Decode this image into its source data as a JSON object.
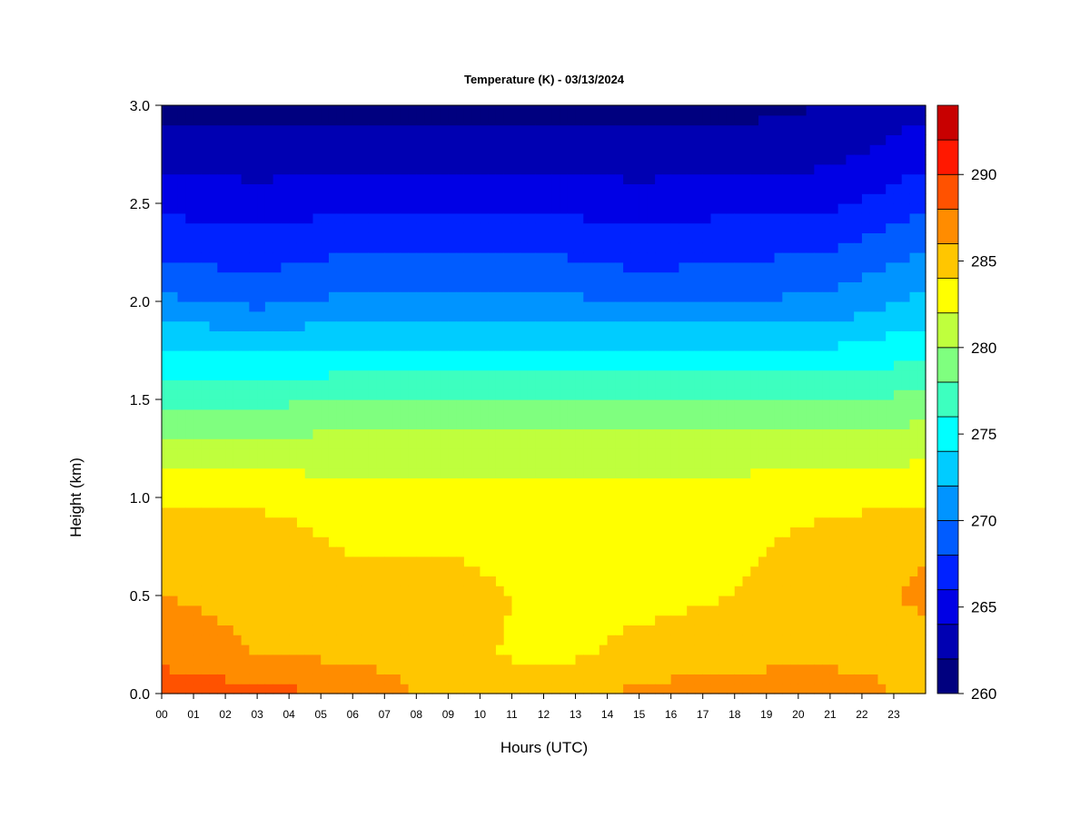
{
  "chart_data": {
    "type": "heatmap",
    "title": "Temperature (K) - 03/13/2024",
    "xlabel": "Hours (UTC)",
    "ylabel": "Height (km)",
    "x_ticks": [
      "00",
      "01",
      "02",
      "03",
      "04",
      "05",
      "06",
      "07",
      "08",
      "09",
      "10",
      "11",
      "12",
      "13",
      "14",
      "15",
      "16",
      "17",
      "18",
      "19",
      "20",
      "21",
      "22",
      "23"
    ],
    "xlim": [
      0,
      24
    ],
    "y_ticks": [
      "0.0",
      "0.5",
      "1.0",
      "1.5",
      "2.0",
      "2.5",
      "3.0"
    ],
    "ylim": [
      0,
      3.0
    ],
    "colorbar": {
      "ticks": [
        "260",
        "265",
        "270",
        "275",
        "280",
        "285",
        "290"
      ],
      "range": [
        260,
        294
      ],
      "levels": [
        260,
        262,
        264,
        266,
        268,
        270,
        272,
        274,
        276,
        278,
        280,
        282,
        284,
        286,
        288,
        290,
        292,
        294
      ],
      "colors": [
        "#00007f",
        "#0000b2",
        "#0000e5",
        "#0022ff",
        "#005cff",
        "#0094ff",
        "#00ccff",
        "#00ffff",
        "#3dffbf",
        "#7fff7f",
        "#bfff3d",
        "#ffff00",
        "#ffc600",
        "#ff8c00",
        "#ff5200",
        "#ff1800",
        "#c80000",
        "#7f0000"
      ]
    },
    "profile_heights_km": [
      0.0,
      0.2,
      0.5,
      0.8,
      1.0,
      1.3,
      1.5,
      1.7,
      2.0,
      2.2,
      2.5,
      2.8,
      3.0
    ],
    "profile_hours": [
      0,
      3,
      6,
      9,
      12,
      15,
      18,
      21,
      24
    ],
    "temperature_profiles_K": [
      [
        290.0,
        287.0,
        286.0,
        285.5,
        283.5,
        280.0,
        277.5,
        275.0,
        270.5,
        268.0,
        265.5,
        262.5,
        261.5
      ],
      [
        288.5,
        286.0,
        285.5,
        285.0,
        283.5,
        280.0,
        277.5,
        274.5,
        269.5,
        267.5,
        265.0,
        262.5,
        261.5
      ],
      [
        288.0,
        285.5,
        285.0,
        283.5,
        283.0,
        280.5,
        278.0,
        275.0,
        270.5,
        268.5,
        265.5,
        262.5,
        261.5
      ],
      [
        285.0,
        284.5,
        285.0,
        283.5,
        283.0,
        280.5,
        278.0,
        275.0,
        270.5,
        268.5,
        265.5,
        262.5,
        261.5
      ],
      [
        285.0,
        283.5,
        283.5,
        283.0,
        283.0,
        280.5,
        278.0,
        275.0,
        270.5,
        268.5,
        265.5,
        262.5,
        261.5
      ],
      [
        286.5,
        284.5,
        283.5,
        283.0,
        283.0,
        280.5,
        278.0,
        275.0,
        270.0,
        267.5,
        265.0,
        262.5,
        261.5
      ],
      [
        287.5,
        285.0,
        284.0,
        283.5,
        283.0,
        280.5,
        278.0,
        275.0,
        270.0,
        268.0,
        265.5,
        262.5,
        261.5
      ],
      [
        288.0,
        285.0,
        285.0,
        284.5,
        283.5,
        280.5,
        278.0,
        275.0,
        270.5,
        268.5,
        265.5,
        263.0,
        262.0
      ],
      [
        285.0,
        285.0,
        286.5,
        285.5,
        283.5,
        281.0,
        278.5,
        276.0,
        272.5,
        270.5,
        267.5,
        265.0,
        263.5
      ]
    ]
  }
}
